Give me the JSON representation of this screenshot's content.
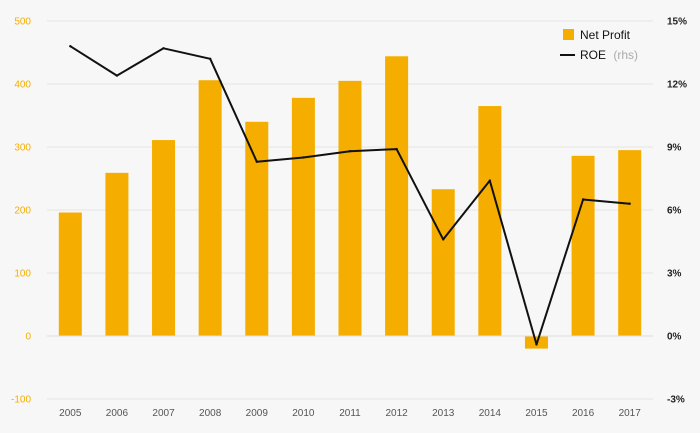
{
  "chart_data": {
    "type": "bar",
    "categories": [
      "2005",
      "2006",
      "2007",
      "2008",
      "2009",
      "2010",
      "2011",
      "2012",
      "2013",
      "2014",
      "2015",
      "2016",
      "2017"
    ],
    "series": [
      {
        "name": "Net Profit",
        "type": "bar",
        "axis": "left",
        "values": [
          196,
          259,
          311,
          406,
          340,
          378,
          405,
          444,
          233,
          365,
          -20,
          286,
          295
        ]
      },
      {
        "name": "ROE",
        "name_suffix": "(rhs)",
        "type": "line",
        "axis": "right",
        "values": [
          13.8,
          12.4,
          13.7,
          13.2,
          8.3,
          8.5,
          8.8,
          8.9,
          4.6,
          7.4,
          -0.4,
          6.5,
          6.3
        ]
      }
    ],
    "y_left": {
      "range": [
        -100,
        500
      ],
      "ticks": [
        "-100",
        "0",
        "100",
        "200",
        "300",
        "400",
        "500"
      ]
    },
    "y_right": {
      "range": [
        -3,
        15
      ],
      "ticks": [
        "-3%",
        "0%",
        "3%",
        "6%",
        "9%",
        "12%",
        "15%"
      ]
    },
    "grid": true,
    "legend": "top-right",
    "colors": {
      "bar": "#f5ae00",
      "line": "#111111",
      "grid": "#e6e6e6",
      "background": "#f7f7f7"
    }
  }
}
